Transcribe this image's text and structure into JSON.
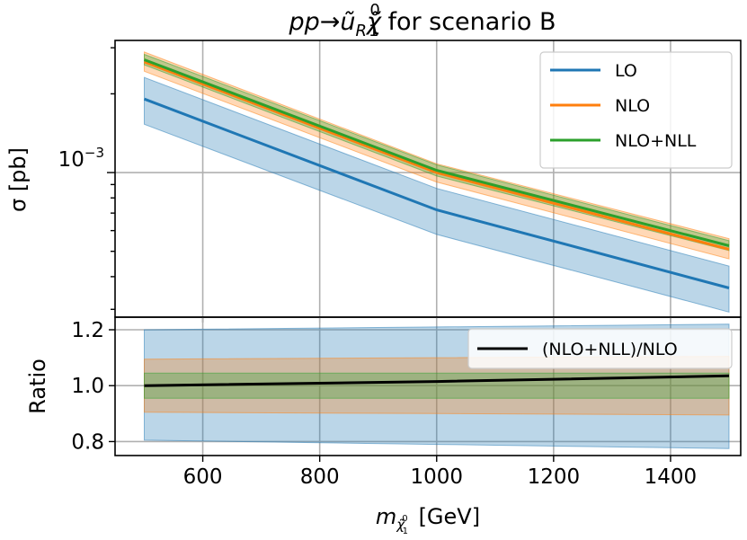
{
  "title_main": "pp→ũ",
  "title_sub1": "R",
  "title_chi": "χ̃",
  "title_sub2": "1",
  "title_sup": "0",
  "title_rest": " for scenario B",
  "chart_data": [
    {
      "type": "line",
      "panel": "top",
      "yscale": "log",
      "x": [
        500,
        1000,
        1500
      ],
      "xlim": [
        450,
        1520
      ],
      "ylim": [
        0.00028,
        0.0032
      ],
      "ylabel": "σ [pb]",
      "ytick_label_base": "10",
      "ytick_label_exp": "−3",
      "legend_position": "upper right",
      "series": [
        {
          "name": "LO",
          "color": "#1f77b4",
          "values": [
            0.00191,
            0.00072,
            0.000362
          ],
          "band_low": [
            0.00153,
            0.00058,
            0.000293
          ],
          "band_high": [
            0.00231,
            0.00087,
            0.000439
          ]
        },
        {
          "name": "NLO",
          "color": "#ff7f0e",
          "values": [
            0.00265,
            0.001,
            0.000509
          ],
          "band_low": [
            0.00244,
            0.00092,
            0.000468
          ],
          "band_high": [
            0.00289,
            0.00108,
            0.000559
          ]
        },
        {
          "name": "NLO+NLL",
          "color": "#2ca02c",
          "values": [
            0.0027,
            0.00102,
            0.000525
          ],
          "band_low": [
            0.00258,
            0.00097,
            0.000503
          ],
          "band_high": [
            0.00283,
            0.00107,
            0.000549
          ]
        }
      ]
    },
    {
      "type": "line",
      "panel": "bottom",
      "x": [
        500,
        1000,
        1500
      ],
      "xlim": [
        450,
        1520
      ],
      "ylim": [
        0.75,
        1.245
      ],
      "ylabel": "Ratio",
      "yticks": [
        0.8,
        1.0,
        1.2
      ],
      "ytick_labels": [
        "0.8",
        "1.0",
        "1.2"
      ],
      "xticks": [
        600,
        800,
        1000,
        1200,
        1400
      ],
      "xtick_labels": [
        "600",
        "800",
        "1000",
        "1200",
        "1400"
      ],
      "xlabel_main": "m",
      "xlabel_sub": "χ̃",
      "xlabel_sub_sup": "0",
      "xlabel_sub_sub": "1",
      "xlabel_unit": " [GeV]",
      "legend_position": "upper right",
      "bands": [
        {
          "name": "LO",
          "color": "#1f77b4",
          "low": [
            0.805,
            0.79,
            0.775
          ],
          "high": [
            1.2,
            1.21,
            1.22
          ]
        },
        {
          "name": "NLO",
          "color": "#ff7f0e",
          "low": [
            0.905,
            0.9,
            0.895
          ],
          "high": [
            1.095,
            1.1,
            1.105
          ]
        },
        {
          "name": "NLO+NLL",
          "color": "#2ca02c",
          "low": [
            0.955,
            0.955,
            0.955
          ],
          "high": [
            1.045,
            1.045,
            1.045
          ]
        }
      ],
      "series": [
        {
          "name": "(NLO+NLL)/NLO",
          "color": "#000000",
          "values": [
            1.0,
            1.015,
            1.035
          ]
        }
      ]
    }
  ]
}
